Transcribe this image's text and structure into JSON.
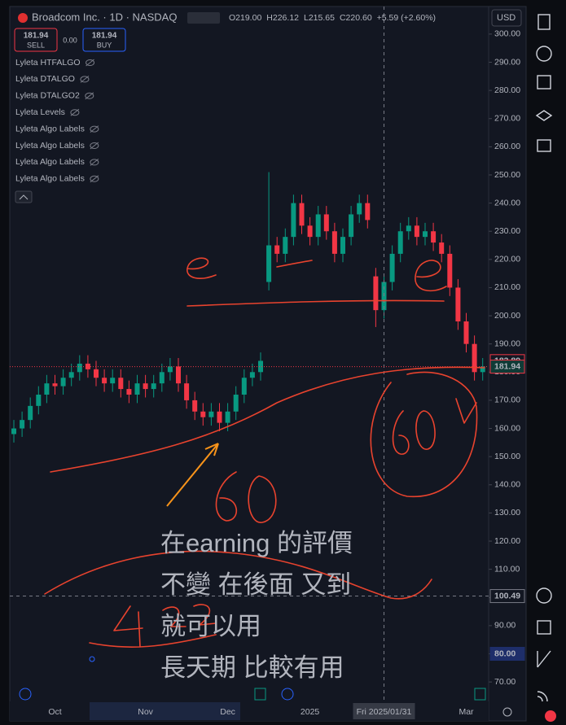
{
  "chart_data": {
    "type": "candlestick",
    "title": "Broadcom Inc. · 1D · NASDAQ",
    "legend_values": [
      "O219.00",
      "H226.12",
      "L215.65",
      "C220.60",
      "+5.59 (+2.60%)"
    ],
    "currency": "USD",
    "trade": {
      "sell_price": "181.94",
      "sell": "SELL",
      "spread": "0.00",
      "buy_price": "181.94",
      "buy": "BUY"
    },
    "indicators": [
      "Lyleta HTFALGO",
      "Lyleta DTALGO",
      "Lyleta DTALGO2",
      "Lyleta Levels",
      "Lyleta Algo Labels",
      "Lyleta Algo Labels",
      "Lyleta Algo Labels",
      "Lyleta Algo Labels"
    ],
    "categories": [
      null,
      null,
      null,
      null,
      null,
      "Oct",
      null,
      null,
      null,
      null,
      null,
      null,
      null,
      null,
      null,
      null,
      "Nov",
      null,
      null,
      null,
      null,
      null,
      null,
      null,
      null,
      null,
      "Dec",
      null,
      null,
      null,
      null,
      null,
      null,
      null,
      null,
      null,
      "2025",
      null,
      null,
      null,
      null,
      null,
      null,
      null,
      null,
      "Fri 2025/01/31",
      null,
      null,
      null,
      null,
      null,
      null,
      null,
      null,
      null,
      "Mar",
      null,
      null
    ],
    "open": [
      158,
      160,
      163,
      168,
      172,
      176,
      175,
      178,
      180,
      183,
      181,
      178,
      176,
      178,
      174,
      172,
      176,
      174,
      176,
      180,
      182,
      176,
      170,
      166,
      164,
      166,
      162,
      166,
      172,
      178,
      180,
      212,
      225,
      222,
      228,
      240,
      232,
      228,
      236,
      230,
      222,
      228,
      236,
      240,
      214,
      202,
      212,
      222,
      230,
      232,
      228,
      230,
      226,
      222,
      210,
      198,
      190,
      180
    ],
    "high": [
      163,
      166,
      171,
      175,
      179,
      179,
      181,
      183,
      186,
      186,
      184,
      181,
      181,
      181,
      177,
      179,
      179,
      179,
      183,
      185,
      185,
      179,
      173,
      169,
      169,
      169,
      169,
      175,
      181,
      183,
      187,
      251,
      228,
      231,
      243,
      243,
      235,
      239,
      239,
      233,
      231,
      239,
      243,
      243,
      217,
      215,
      225,
      233,
      235,
      235,
      233,
      233,
      229,
      225,
      213,
      201,
      193,
      185
    ],
    "low": [
      155,
      157,
      160,
      165,
      169,
      172,
      172,
      175,
      177,
      178,
      175,
      173,
      173,
      171,
      169,
      169,
      171,
      171,
      173,
      177,
      173,
      167,
      163,
      161,
      161,
      159,
      159,
      163,
      169,
      175,
      177,
      209,
      219,
      219,
      225,
      229,
      225,
      225,
      227,
      219,
      219,
      225,
      233,
      231,
      196,
      199,
      209,
      219,
      227,
      225,
      225,
      223,
      219,
      207,
      195,
      187,
      177,
      177
    ],
    "close": [
      160,
      163,
      168,
      172,
      176,
      175,
      178,
      180,
      183,
      181,
      178,
      176,
      178,
      174,
      172,
      176,
      174,
      176,
      180,
      182,
      176,
      170,
      166,
      164,
      166,
      162,
      166,
      172,
      178,
      180,
      184,
      225,
      222,
      228,
      240,
      232,
      228,
      236,
      230,
      222,
      228,
      236,
      240,
      234,
      202,
      212,
      222,
      230,
      232,
      228,
      230,
      226,
      222,
      210,
      198,
      190,
      180,
      182
    ],
    "up_color": "#089981",
    "down_color": "#f23645",
    "ylim": [
      63.1,
      312.1
    ],
    "yticks": [
      {
        "value": 70,
        "label": "70.00"
      },
      {
        "value": 80,
        "label": "80.00"
      },
      {
        "value": 90,
        "label": "90.00"
      },
      {
        "value": 100,
        "label": "100.00"
      },
      {
        "value": 110,
        "label": "110.00"
      },
      {
        "value": 120,
        "label": "120.00"
      },
      {
        "value": 130,
        "label": "130.00"
      },
      {
        "value": 140,
        "label": "140.00"
      },
      {
        "value": 150,
        "label": "150.00"
      },
      {
        "value": 160,
        "label": "160.00"
      },
      {
        "value": 170,
        "label": "170.00"
      },
      {
        "value": 180,
        "label": "180.00"
      },
      {
        "value": 190,
        "label": "190.00"
      },
      {
        "value": 200,
        "label": "200.00"
      },
      {
        "value": 210,
        "label": "210.00"
      },
      {
        "value": 220,
        "label": "220.00"
      },
      {
        "value": 230,
        "label": "230.00"
      },
      {
        "value": 240,
        "label": "240.00"
      },
      {
        "value": 250,
        "label": "250.00"
      },
      {
        "value": 260,
        "label": "260.00"
      },
      {
        "value": 270,
        "label": "270.00"
      },
      {
        "value": 280,
        "label": "280.00"
      },
      {
        "value": 290,
        "label": "290.00"
      },
      {
        "value": 300,
        "label": "300.00"
      }
    ],
    "price_tags": [
      183.89,
      181.94,
      100.49,
      {
        "value": 80,
        "label": "80.00"
      }
    ],
    "annotations": [
      "在earning 的評價",
      "不變 在後面 又到",
      "就可以用",
      "長天期 比較有用"
    ]
  }
}
